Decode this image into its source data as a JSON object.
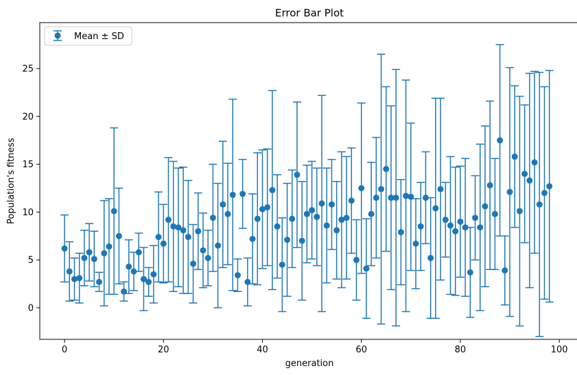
{
  "chart_data": {
    "type": "scatter",
    "title": "Error Bar Plot",
    "xlabel": "generation",
    "ylabel": "Population's fitness",
    "xlim": [
      -5,
      104
    ],
    "ylim": [
      -3.3,
      29.8
    ],
    "xticks": [
      0,
      20,
      40,
      60,
      80,
      100
    ],
    "yticks": [
      0,
      5,
      10,
      15,
      20,
      25
    ],
    "grid": false,
    "legend": {
      "position": "top-left",
      "entries": [
        "Mean ± SD"
      ]
    },
    "color": "#1f77b4",
    "series": [
      {
        "name": "Mean ± SD",
        "x": [
          0,
          1,
          2,
          3,
          4,
          5,
          6,
          7,
          8,
          9,
          10,
          11,
          12,
          13,
          14,
          15,
          16,
          17,
          18,
          19,
          20,
          21,
          22,
          23,
          24,
          25,
          26,
          27,
          28,
          29,
          30,
          31,
          32,
          33,
          34,
          35,
          36,
          37,
          38,
          39,
          40,
          41,
          42,
          43,
          44,
          45,
          46,
          47,
          48,
          49,
          50,
          51,
          52,
          53,
          54,
          55,
          56,
          57,
          58,
          59,
          60,
          61,
          62,
          63,
          64,
          65,
          66,
          67,
          68,
          69,
          70,
          71,
          72,
          73,
          74,
          75,
          76,
          77,
          78,
          79,
          80,
          81,
          82,
          83,
          84,
          85,
          86,
          87,
          88,
          89,
          90,
          91,
          92,
          93,
          94,
          95,
          96,
          97,
          98
        ],
        "mean": [
          6.2,
          3.8,
          3.0,
          3.1,
          5.2,
          5.8,
          5.1,
          2.7,
          5.7,
          6.4,
          10.1,
          7.5,
          1.7,
          4.3,
          3.8,
          5.8,
          3.0,
          2.7,
          3.5,
          7.4,
          6.7,
          9.2,
          8.5,
          8.4,
          8.1,
          7.4,
          4.6,
          8.0,
          6.0,
          5.2,
          9.4,
          6.5,
          10.8,
          9.8,
          11.8,
          3.4,
          11.9,
          2.7,
          7.2,
          9.3,
          10.3,
          10.5,
          12.3,
          8.5,
          4.5,
          7.1,
          9.3,
          13.9,
          7.0,
          9.8,
          10.2,
          9.5,
          10.9,
          8.6,
          10.8,
          8.1,
          9.2,
          9.4,
          11.2,
          5.0,
          12.5,
          4.1,
          9.8,
          11.5,
          12.4,
          14.5,
          11.5,
          11.5,
          7.9,
          11.7,
          11.6,
          6.7,
          8.5,
          11.5,
          5.2,
          10.4,
          12.4,
          9.2,
          8.6,
          8.0,
          9.0,
          8.4,
          3.7,
          9.4,
          8.4,
          10.6,
          12.8,
          9.8,
          17.5,
          3.9,
          12.1,
          15.8,
          10.1,
          14.0,
          13.3,
          15.2,
          10.8,
          12.0,
          12.7
        ],
        "err": [
          3.5,
          3.1,
          2.2,
          2.6,
          2.9,
          3.0,
          2.9,
          1.0,
          5.5,
          5.0,
          8.7,
          5.0,
          1.0,
          2.8,
          2.0,
          2.0,
          3.3,
          1.5,
          3.0,
          4.7,
          4.1,
          6.5,
          6.8,
          6.2,
          6.6,
          5.9,
          4.1,
          4.0,
          3.9,
          2.9,
          5.6,
          6.5,
          6.6,
          5.3,
          10.0,
          1.7,
          3.6,
          2.5,
          4.7,
          6.9,
          6.2,
          6.1,
          10.4,
          5.4,
          4.9,
          5.9,
          5.1,
          7.6,
          6.2,
          5.1,
          5.1,
          5.1,
          11.3,
          6.0,
          4.7,
          5.1,
          7.1,
          6.4,
          5.5,
          4.2,
          8.9,
          5.2,
          5.4,
          6.3,
          14.1,
          8.6,
          9.6,
          13.4,
          5.5,
          12.1,
          7.7,
          4.7,
          4.6,
          4.8,
          6.3,
          11.5,
          9.5,
          3.9,
          7.2,
          6.7,
          5.8,
          7.2,
          4.7,
          4.4,
          8.7,
          8.4,
          8.8,
          5.8,
          10.0,
          3.6,
          13.0,
          7.4,
          12.0,
          7.2,
          11.2,
          9.5,
          13.8,
          11.1,
          12.1
        ]
      }
    ]
  }
}
